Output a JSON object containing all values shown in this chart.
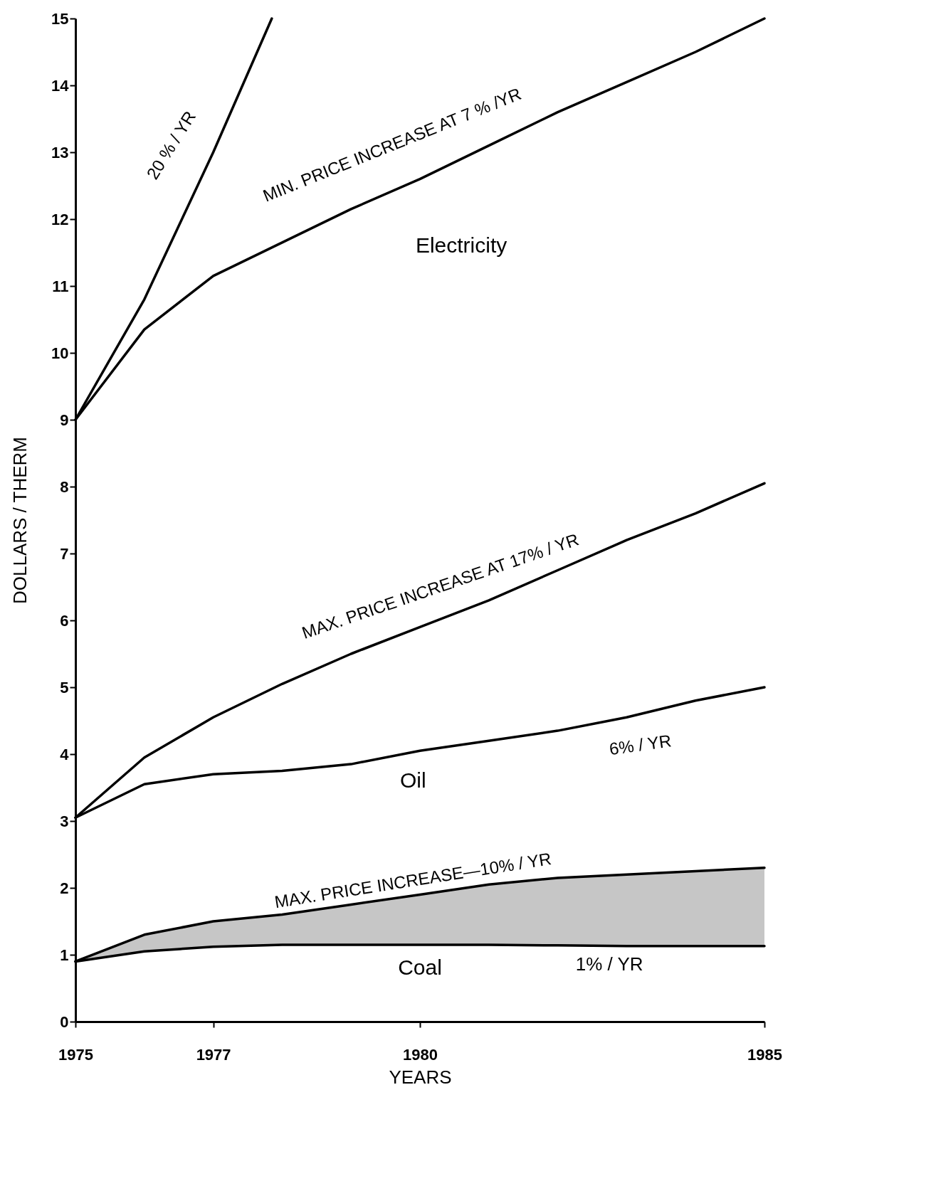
{
  "chart_data": {
    "type": "line",
    "xlabel": "YEARS",
    "ylabel": "DOLLARS / THERM",
    "x": [
      1975,
      1976,
      1977,
      1978,
      1979,
      1980,
      1981,
      1982,
      1983,
      1984,
      1985
    ],
    "series": [
      {
        "color": "#000000",
        "x": [
          1975,
          1976,
          1977,
          1977.85
        ],
        "values": [
          9,
          10.8,
          13.0,
          15
        ]
      },
      {
        "color": "#000000",
        "values": [
          9,
          10.35,
          11.15,
          11.65,
          12.15,
          12.6,
          13.1,
          13.6,
          14.05,
          14.5,
          15.0
        ]
      },
      {
        "color": "#000000",
        "values": [
          3.05,
          3.95,
          4.55,
          5.05,
          5.5,
          5.9,
          6.3,
          6.75,
          7.2,
          7.6,
          8.05
        ]
      },
      {
        "color": "#000000",
        "values": [
          3.05,
          3.55,
          3.7,
          3.75,
          3.85,
          4.05,
          4.2,
          4.35,
          4.55,
          4.8,
          5.0
        ]
      },
      {
        "color": "#000000",
        "values": [
          0.9,
          1.3,
          1.5,
          1.6,
          1.75,
          1.9,
          2.05,
          2.15,
          2.2,
          2.25,
          2.3
        ],
        "lower": [
          0.9,
          1.05,
          1.12,
          1.15,
          1.15,
          1.15,
          1.15,
          1.14,
          1.13,
          1.13,
          1.13
        ],
        "upper": [
          0.9,
          1.3,
          1.5,
          1.6,
          1.75,
          1.9,
          2.05,
          2.15,
          2.2,
          2.25,
          2.3
        ]
      },
      {
        "color": "#000000",
        "values": [
          0.9,
          1.05,
          1.12,
          1.15,
          1.15,
          1.15,
          1.15,
          1.14,
          1.13,
          1.13,
          1.13
        ]
      }
    ],
    "xlim": [
      1975,
      1985
    ],
    "xticks": [
      1975,
      1977,
      1980,
      1985
    ],
    "ylim": [
      0,
      15
    ],
    "yticks": [
      0,
      1,
      2,
      3,
      4,
      5,
      6,
      7,
      8,
      9,
      10,
      11,
      12,
      13,
      14,
      15
    ],
    "grid": false,
    "legend": false,
    "marker": "none",
    "line_style": "solid",
    "annotations": [
      "20 % / YR",
      "MIN. PRICE INCREASE AT 7 % /YR",
      "Electricity",
      "MAX. PRICE INCREASE AT 17% / YR",
      "6% / YR",
      "Oil",
      "MAX. PRICE INCREASE—10% / YR",
      "Coal",
      "1% / YR"
    ]
  }
}
